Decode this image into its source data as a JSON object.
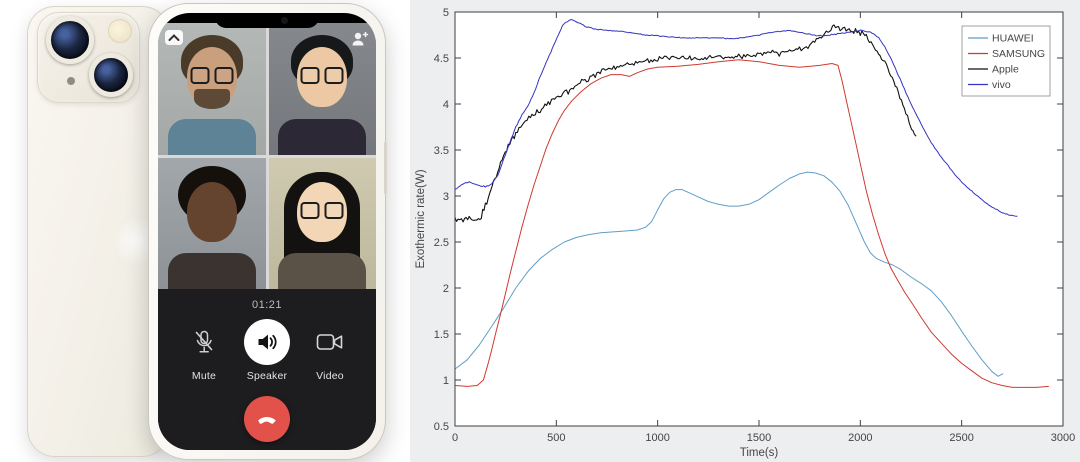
{
  "phone": {
    "call": {
      "timer": "01:21",
      "controls": [
        {
          "id": "mute",
          "label": "Mute"
        },
        {
          "id": "speaker",
          "label": "Speaker"
        },
        {
          "id": "video",
          "label": "Video"
        }
      ],
      "participants": [
        {
          "position": "top-left",
          "bg": "#b4b8b6",
          "bg2": "#a3a7a5",
          "skin": "#c99f7e",
          "hair": "#4a3a28",
          "hairStyle": "short",
          "shirt": "#5e8296",
          "glasses": true,
          "beard": true
        },
        {
          "position": "top-right",
          "bg": "#85888c",
          "bg2": "#74777b",
          "skin": "#ecc9a4",
          "hair": "#17181a",
          "hairStyle": "short",
          "shirt": "#2c2836",
          "glasses": true,
          "beard": false
        },
        {
          "position": "bottom-left",
          "bg": "#a2a7ab",
          "bg2": "#8d9296",
          "skin": "#64432f",
          "hair": "#15100c",
          "hairStyle": "curly",
          "shirt": "#3a3330",
          "glasses": false,
          "beard": false
        },
        {
          "position": "bottom-right",
          "bg": "#cfcab0",
          "bg2": "#bdb89c",
          "skin": "#f2d6b6",
          "hair": "#141210",
          "hairStyle": "long",
          "shirt": "#5a5246",
          "glasses": true,
          "beard": false
        }
      ],
      "end_call_color": "#e2514a"
    }
  },
  "chart_data": {
    "type": "line",
    "title": "",
    "xlabel": "Time(s)",
    "ylabel": "Exothermic rate(W)",
    "xlim": [
      0,
      3000
    ],
    "ylim": [
      0.5,
      5
    ],
    "x_ticks": [
      0,
      500,
      1000,
      1500,
      2000,
      2500,
      3000
    ],
    "y_ticks": [
      0.5,
      1,
      1.5,
      2,
      2.5,
      3,
      3.5,
      4,
      4.5,
      5
    ],
    "grid": false,
    "legend_position": "top-right",
    "figure_bg": "#edeef0",
    "plot_bg": "#ffffff",
    "axis_color": "#3f3f3f",
    "series": [
      {
        "name": "HUAWEI",
        "color": "#5f9ec7",
        "width": 1,
        "noise": 0,
        "points": [
          [
            0,
            1.12
          ],
          [
            60,
            1.22
          ],
          [
            120,
            1.38
          ],
          [
            180,
            1.58
          ],
          [
            240,
            1.78
          ],
          [
            300,
            2.0
          ],
          [
            360,
            2.18
          ],
          [
            420,
            2.32
          ],
          [
            480,
            2.42
          ],
          [
            540,
            2.5
          ],
          [
            600,
            2.55
          ],
          [
            660,
            2.58
          ],
          [
            720,
            2.6
          ],
          [
            780,
            2.61
          ],
          [
            840,
            2.62
          ],
          [
            900,
            2.63
          ],
          [
            940,
            2.66
          ],
          [
            970,
            2.72
          ],
          [
            1000,
            2.85
          ],
          [
            1030,
            2.97
          ],
          [
            1060,
            3.04
          ],
          [
            1090,
            3.07
          ],
          [
            1120,
            3.07
          ],
          [
            1160,
            3.03
          ],
          [
            1200,
            2.99
          ],
          [
            1250,
            2.94
          ],
          [
            1300,
            2.91
          ],
          [
            1350,
            2.89
          ],
          [
            1400,
            2.89
          ],
          [
            1450,
            2.91
          ],
          [
            1500,
            2.96
          ],
          [
            1550,
            3.04
          ],
          [
            1600,
            3.12
          ],
          [
            1650,
            3.19
          ],
          [
            1700,
            3.24
          ],
          [
            1740,
            3.26
          ],
          [
            1780,
            3.25
          ],
          [
            1820,
            3.22
          ],
          [
            1860,
            3.15
          ],
          [
            1900,
            3.05
          ],
          [
            1940,
            2.9
          ],
          [
            1980,
            2.7
          ],
          [
            2020,
            2.5
          ],
          [
            2050,
            2.38
          ],
          [
            2080,
            2.32
          ],
          [
            2120,
            2.28
          ],
          [
            2160,
            2.25
          ],
          [
            2200,
            2.2
          ],
          [
            2250,
            2.12
          ],
          [
            2300,
            2.05
          ],
          [
            2350,
            1.97
          ],
          [
            2400,
            1.85
          ],
          [
            2450,
            1.7
          ],
          [
            2500,
            1.53
          ],
          [
            2550,
            1.37
          ],
          [
            2600,
            1.22
          ],
          [
            2650,
            1.09
          ],
          [
            2680,
            1.04
          ],
          [
            2705,
            1.07
          ]
        ]
      },
      {
        "name": "SAMSUNG",
        "color": "#cf3a2e",
        "width": 1,
        "noise": 0,
        "points": [
          [
            0,
            0.94
          ],
          [
            60,
            0.93
          ],
          [
            110,
            0.94
          ],
          [
            140,
            1.0
          ],
          [
            160,
            1.15
          ],
          [
            180,
            1.32
          ],
          [
            200,
            1.5
          ],
          [
            225,
            1.72
          ],
          [
            250,
            1.95
          ],
          [
            275,
            2.18
          ],
          [
            300,
            2.4
          ],
          [
            330,
            2.66
          ],
          [
            360,
            2.9
          ],
          [
            390,
            3.12
          ],
          [
            420,
            3.32
          ],
          [
            450,
            3.52
          ],
          [
            480,
            3.68
          ],
          [
            510,
            3.82
          ],
          [
            540,
            3.93
          ],
          [
            575,
            4.03
          ],
          [
            620,
            4.13
          ],
          [
            670,
            4.22
          ],
          [
            720,
            4.28
          ],
          [
            770,
            4.32
          ],
          [
            820,
            4.32
          ],
          [
            860,
            4.3
          ],
          [
            900,
            4.34
          ],
          [
            950,
            4.38
          ],
          [
            1000,
            4.4
          ],
          [
            1100,
            4.41
          ],
          [
            1200,
            4.43
          ],
          [
            1300,
            4.46
          ],
          [
            1400,
            4.48
          ],
          [
            1500,
            4.46
          ],
          [
            1600,
            4.42
          ],
          [
            1700,
            4.4
          ],
          [
            1800,
            4.42
          ],
          [
            1860,
            4.44
          ],
          [
            1890,
            4.42
          ],
          [
            1910,
            4.25
          ],
          [
            1930,
            4.05
          ],
          [
            1950,
            3.85
          ],
          [
            1975,
            3.6
          ],
          [
            2000,
            3.35
          ],
          [
            2030,
            3.05
          ],
          [
            2060,
            2.8
          ],
          [
            2090,
            2.58
          ],
          [
            2120,
            2.38
          ],
          [
            2150,
            2.22
          ],
          [
            2180,
            2.1
          ],
          [
            2220,
            1.95
          ],
          [
            2260,
            1.82
          ],
          [
            2300,
            1.68
          ],
          [
            2350,
            1.52
          ],
          [
            2400,
            1.4
          ],
          [
            2450,
            1.28
          ],
          [
            2500,
            1.18
          ],
          [
            2550,
            1.1
          ],
          [
            2600,
            1.02
          ],
          [
            2650,
            0.97
          ],
          [
            2700,
            0.94
          ],
          [
            2750,
            0.92
          ],
          [
            2800,
            0.92
          ],
          [
            2870,
            0.92
          ],
          [
            2930,
            0.93
          ]
        ]
      },
      {
        "name": "Apple",
        "color": "#111111",
        "width": 1.1,
        "noise": 0.032,
        "points": [
          [
            0,
            2.75
          ],
          [
            40,
            2.72
          ],
          [
            70,
            2.75
          ],
          [
            100,
            2.73
          ],
          [
            130,
            2.78
          ],
          [
            150,
            2.9
          ],
          [
            170,
            3.02
          ],
          [
            190,
            3.15
          ],
          [
            210,
            3.28
          ],
          [
            240,
            3.45
          ],
          [
            270,
            3.58
          ],
          [
            300,
            3.68
          ],
          [
            340,
            3.8
          ],
          [
            380,
            3.88
          ],
          [
            420,
            3.94
          ],
          [
            460,
            4.0
          ],
          [
            500,
            4.06
          ],
          [
            550,
            4.13
          ],
          [
            600,
            4.2
          ],
          [
            650,
            4.27
          ],
          [
            700,
            4.33
          ],
          [
            750,
            4.38
          ],
          [
            800,
            4.41
          ],
          [
            850,
            4.43
          ],
          [
            900,
            4.45
          ],
          [
            950,
            4.47
          ],
          [
            1000,
            4.48
          ],
          [
            1050,
            4.5
          ],
          [
            1100,
            4.51
          ],
          [
            1150,
            4.5
          ],
          [
            1200,
            4.5
          ],
          [
            1250,
            4.51
          ],
          [
            1300,
            4.52
          ],
          [
            1350,
            4.51
          ],
          [
            1400,
            4.52
          ],
          [
            1450,
            4.53
          ],
          [
            1500,
            4.54
          ],
          [
            1550,
            4.55
          ],
          [
            1600,
            4.55
          ],
          [
            1650,
            4.57
          ],
          [
            1700,
            4.6
          ],
          [
            1750,
            4.64
          ],
          [
            1800,
            4.72
          ],
          [
            1840,
            4.79
          ],
          [
            1870,
            4.83
          ],
          [
            1900,
            4.83
          ],
          [
            1930,
            4.81
          ],
          [
            1960,
            4.79
          ],
          [
            2000,
            4.78
          ],
          [
            2030,
            4.74
          ],
          [
            2060,
            4.65
          ],
          [
            2090,
            4.55
          ],
          [
            2120,
            4.45
          ],
          [
            2150,
            4.32
          ],
          [
            2180,
            4.15
          ],
          [
            2210,
            3.98
          ],
          [
            2240,
            3.8
          ],
          [
            2260,
            3.7
          ],
          [
            2275,
            3.65
          ]
        ]
      },
      {
        "name": "vivo",
        "color": "#3434c2",
        "width": 1,
        "noise": 0.006,
        "points": [
          [
            0,
            3.07
          ],
          [
            40,
            3.13
          ],
          [
            70,
            3.15
          ],
          [
            110,
            3.12
          ],
          [
            150,
            3.1
          ],
          [
            180,
            3.13
          ],
          [
            210,
            3.22
          ],
          [
            240,
            3.4
          ],
          [
            270,
            3.58
          ],
          [
            300,
            3.75
          ],
          [
            330,
            3.88
          ],
          [
            360,
            3.98
          ],
          [
            390,
            4.12
          ],
          [
            420,
            4.3
          ],
          [
            450,
            4.45
          ],
          [
            480,
            4.6
          ],
          [
            510,
            4.75
          ],
          [
            530,
            4.85
          ],
          [
            555,
            4.9
          ],
          [
            575,
            4.92
          ],
          [
            600,
            4.89
          ],
          [
            650,
            4.84
          ],
          [
            700,
            4.81
          ],
          [
            760,
            4.8
          ],
          [
            820,
            4.79
          ],
          [
            880,
            4.77
          ],
          [
            940,
            4.75
          ],
          [
            1000,
            4.74
          ],
          [
            1060,
            4.73
          ],
          [
            1120,
            4.72
          ],
          [
            1180,
            4.72
          ],
          [
            1240,
            4.72
          ],
          [
            1300,
            4.72
          ],
          [
            1360,
            4.71
          ],
          [
            1420,
            4.72
          ],
          [
            1480,
            4.74
          ],
          [
            1540,
            4.77
          ],
          [
            1600,
            4.79
          ],
          [
            1640,
            4.8
          ],
          [
            1700,
            4.78
          ],
          [
            1760,
            4.75
          ],
          [
            1820,
            4.74
          ],
          [
            1880,
            4.76
          ],
          [
            1940,
            4.78
          ],
          [
            2000,
            4.8
          ],
          [
            2050,
            4.78
          ],
          [
            2090,
            4.72
          ],
          [
            2120,
            4.62
          ],
          [
            2150,
            4.5
          ],
          [
            2180,
            4.35
          ],
          [
            2210,
            4.2
          ],
          [
            2250,
            4.0
          ],
          [
            2300,
            3.78
          ],
          [
            2350,
            3.58
          ],
          [
            2400,
            3.42
          ],
          [
            2450,
            3.28
          ],
          [
            2500,
            3.15
          ],
          [
            2550,
            3.05
          ],
          [
            2600,
            2.96
          ],
          [
            2650,
            2.88
          ],
          [
            2700,
            2.82
          ],
          [
            2740,
            2.79
          ],
          [
            2775,
            2.78
          ]
        ]
      }
    ]
  }
}
